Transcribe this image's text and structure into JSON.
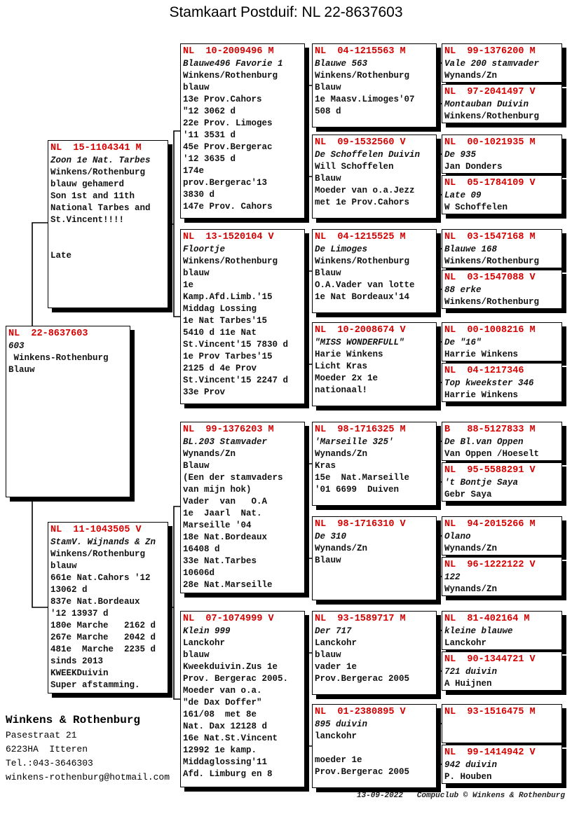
{
  "title": "Stamkaart Postduif: NL  22-8637603",
  "colors": {
    "ring_red": "#d40000",
    "line_black": "#000000"
  },
  "subject": {
    "ring": "NL  22-8637603",
    "lines": [
      "603",
      " Winkens-Rothenburg",
      "Blauw"
    ]
  },
  "father": {
    "ring": "NL  15-1104341 M",
    "lines": [
      "Zoon 1e Nat. Tarbes",
      "Winkens/Rothenburg",
      "blauw gehamerd",
      "Son 1st and 11th",
      "National Tarbes and",
      "St.Vincent!!!!",
      "",
      "",
      "Late"
    ]
  },
  "mother": {
    "ring": "NL  11-1043505 V",
    "lines": [
      "StamV. Wijnands & Zn",
      "Winkens/Rothenburg",
      "blauw",
      "661e Nat.Cahors '12",
      "13062 d",
      "837e Nat.Bordeaux",
      "'12 13937 d",
      "180e Marche   2162 d",
      "267e Marche   2042 d",
      "481e  Marche  2235 d",
      "sinds 2013",
      "KWEEKDuivin",
      "Super afstamming."
    ]
  },
  "grandparents": [
    {
      "ring": "NL  10-2009496 M",
      "lines": [
        "Blauwe496 Favorie 1",
        "Winkens/Rothenburg",
        "blauw",
        "13e Prov.Cahors",
        "\"12 3062 d",
        "22e Prov. Limoges",
        "'11 3531 d",
        "45e Prov.Bergerac",
        "'12 3635 d",
        "174e",
        "prov.Bergerac'13",
        "3830 d",
        "147e Prov. Cahors"
      ]
    },
    {
      "ring": "NL  13-1520104 V",
      "lines": [
        "Floortje",
        "Winkens/Rothenburg",
        "blauw",
        "1e",
        "Kamp.Afd.Limb.'15",
        "Middag Lossing",
        "1e Nat Tarbes'15",
        "5410 d 11e Nat",
        "St.Vincent'15 7830 d",
        "1e Prov Tarbes'15",
        "2125 d 4e Prov",
        "St.Vincent'15 2247 d",
        "33e Prov"
      ]
    },
    {
      "ring": "NL  99-1376203 M",
      "lines": [
        "BL.203 Stamvader",
        "Wynands/Zn",
        "Blauw",
        "(Een der stamvaders",
        "van mijn hok)",
        "Vader  van   O.A",
        "1e  Jaarl  Nat.",
        "Marseille '04",
        "18e Nat.Bordeaux",
        "16408 d",
        "33e Nat.Tarbes",
        "10606d",
        "28e Nat.Marseille"
      ]
    },
    {
      "ring": "NL  07-1074999 V",
      "lines": [
        "Klein 999",
        "Lanckohr",
        "blauw",
        "Kweekduivin.Zus 1e",
        "Prov. Bergerac 2005.",
        "Moeder van o.a.",
        "\"de Dax Doffer\"",
        "161/08  met 8e",
        "Nat. Dax 12128 d",
        "16e Nat.St.Vincent",
        "12992 1e kamp.",
        "Middaglossing'11",
        "Afd. Limburg en 8"
      ]
    }
  ],
  "great_grandparents": [
    {
      "ring": "NL  04-1215563 M",
      "lines": [
        "Blauwe 563",
        "Winkens/Rothenburg",
        "Blauw",
        "1e Maasv.Limoges'07",
        "508 d"
      ]
    },
    {
      "ring": "NL  09-1532560 V",
      "lines": [
        "De Schoffelen Duivin",
        "Will Schoffelen",
        "Blauw",
        "Moeder van o.a.Jezz",
        "met 1e Prov.Cahors"
      ]
    },
    {
      "ring": "NL  04-1215525 M",
      "lines": [
        "De Limoges",
        "Winkens/Rothenburg",
        "Blauw",
        "O.A.Vader van lotte",
        "1e Nat Bordeaux'14"
      ]
    },
    {
      "ring": "NL  10-2008674 V",
      "lines": [
        "\"MISS WONDERFULL\"",
        "Harie Winkens",
        "Licht Kras",
        "Moeder 2x 1e",
        "nationaal!"
      ]
    },
    {
      "ring": "NL  98-1716325 M",
      "lines": [
        "'Marseille 325'",
        "Wynands/Zn",
        "Kras",
        "15e  Nat.Marseille",
        "'01 6699  Duiven"
      ]
    },
    {
      "ring": "NL  98-1716310 V",
      "lines": [
        "De 310",
        "Wynands/Zn",
        "Blauw"
      ]
    },
    {
      "ring": "NL  93-1589717 M",
      "lines": [
        "Der 717",
        "Lanckohr",
        "blauw",
        "vader 1e",
        "Prov.Bergerac 2005"
      ]
    },
    {
      "ring": "NL  01-2380895 V",
      "lines": [
        "895 duivin",
        "lanckohr",
        "",
        "moeder 1e",
        "Prov.Bergerac 2005"
      ]
    }
  ],
  "gg_grandparents": [
    {
      "ring": "NL  99-1376200 M",
      "lines": [
        "Vale 200 stamvader",
        "Wynands/Zn"
      ]
    },
    {
      "ring": "NL  97-2041497 V",
      "lines": [
        "Montauban Duivin",
        "Winkens/Rothenburg"
      ]
    },
    {
      "ring": "NL  00-1021935 M",
      "lines": [
        "De 935",
        "Jan Donders"
      ]
    },
    {
      "ring": "NL  05-1784109 V",
      "lines": [
        "Late 09",
        "W Schoffelen"
      ]
    },
    {
      "ring": "NL  03-1547168 M",
      "lines": [
        "Blauwe 168",
        "Winkens/Rothenburg"
      ]
    },
    {
      "ring": "NL  03-1547088 V",
      "lines": [
        "88 erke",
        "Winkens/Rothenburg"
      ]
    },
    {
      "ring": "NL  00-1008216 M",
      "lines": [
        "De \"16\"",
        "Harrie Winkens"
      ]
    },
    {
      "ring": "NL  04-1217346",
      "lines": [
        "Top kweekster 346",
        "Harrie Winkens"
      ]
    },
    {
      "ring": "B   88-5127833 M",
      "lines": [
        "De Bl.van Oppen",
        "Van Oppen /Hoeselt"
      ]
    },
    {
      "ring": "NL  95-5588291 V",
      "lines": [
        "'t Bontje Saya",
        "Gebr Saya"
      ]
    },
    {
      "ring": "NL  94-2015266 M",
      "lines": [
        "Olano",
        "Wynands/Zn"
      ]
    },
    {
      "ring": "NL  96-1222122 V",
      "lines": [
        "122",
        "Wynands/Zn"
      ]
    },
    {
      "ring": "NL  81-402164 M",
      "lines": [
        "kleine blauwe",
        "Lanckohr"
      ]
    },
    {
      "ring": "NL  90-1344721 V",
      "lines": [
        "721 duivin",
        "A Huijnen"
      ]
    },
    {
      "ring": "NL  93-1516475 M",
      "lines": []
    },
    {
      "ring": "NL  99-1414942 V",
      "lines": [
        "942 duivin",
        "P. Houben"
      ]
    }
  ],
  "owner": {
    "name": "Winkens & Rothenburg",
    "address1": "Pasestraat 21",
    "address2": "6223HA  Itteren",
    "phone": "Tel.:043-3646303",
    "email": "winkens-rothenburg@hotmail.com"
  },
  "footer": "13-09-2022   Compuclub © Winkens & Rothenburg"
}
